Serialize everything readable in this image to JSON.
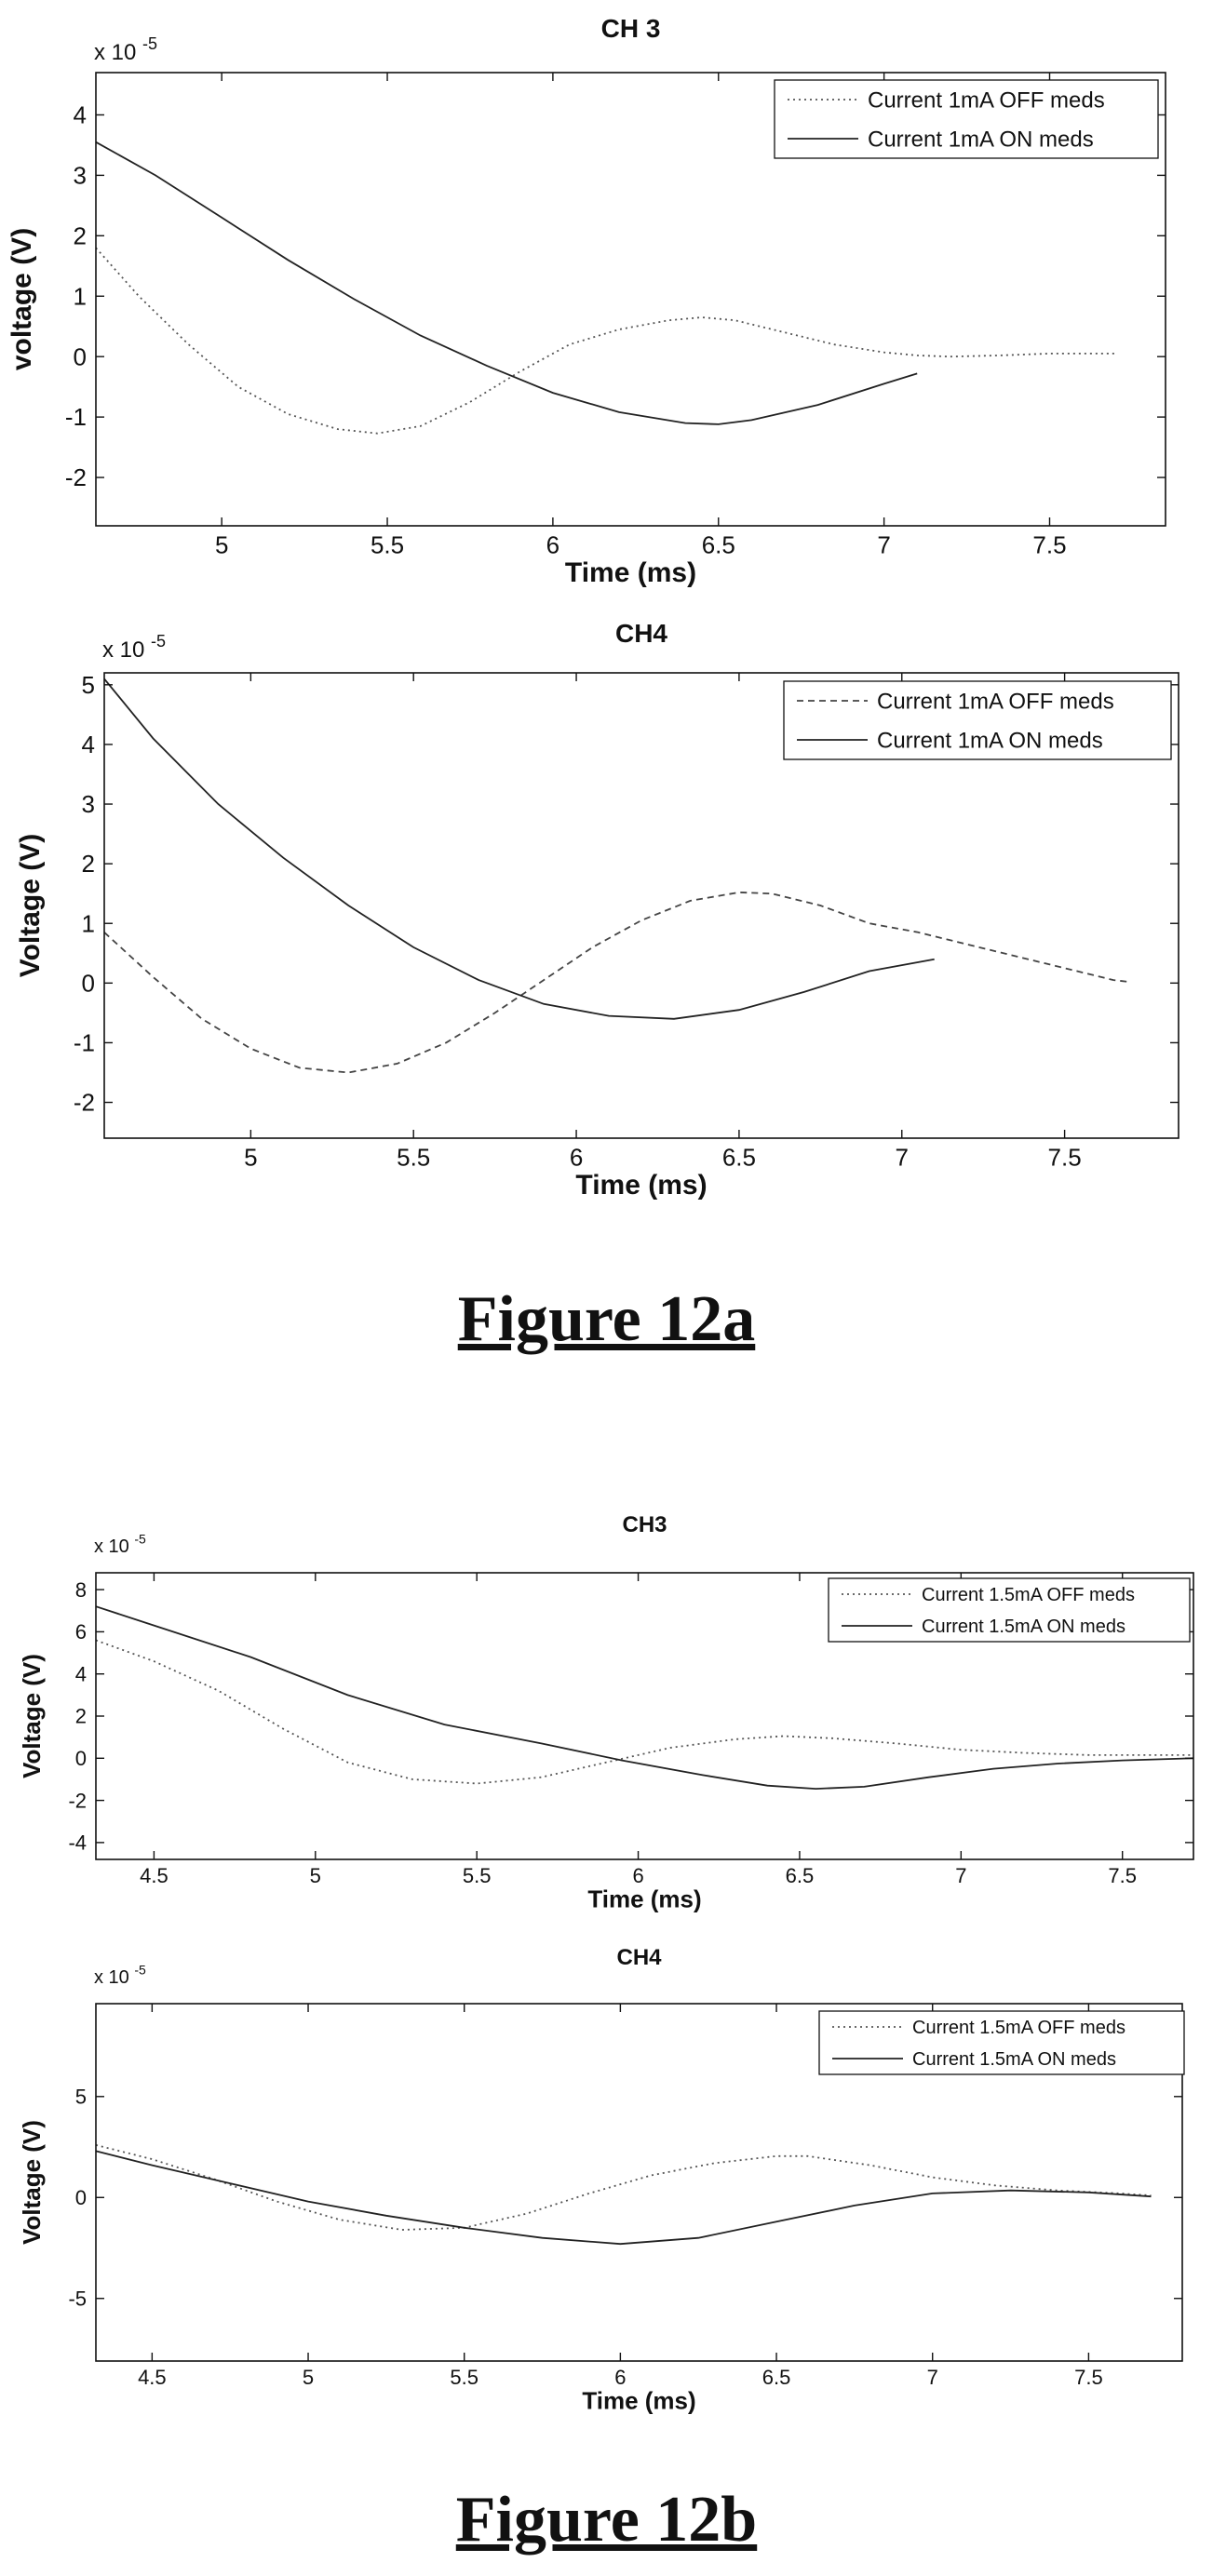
{
  "figures": [
    {
      "caption": "Figure 12a"
    },
    {
      "caption": "Figure 12b"
    }
  ],
  "chart_data": [
    {
      "type": "line",
      "title": "CH 3",
      "xlabel": "Time (ms)",
      "ylabel": "voltage (V)",
      "y_exponent_label": "x 10",
      "y_exponent_power": "-5",
      "xlim": [
        4.62,
        7.85
      ],
      "ylim": [
        -2.8,
        4.7
      ],
      "xticks": [
        5,
        5.5,
        6,
        6.5,
        7,
        7.5
      ],
      "xtick_labels": [
        "5",
        "5.5",
        "6",
        "6.5",
        "7",
        "7.5"
      ],
      "yticks": [
        -2,
        -1,
        0,
        1,
        2,
        3,
        4
      ],
      "ytick_labels": [
        "-2",
        "-1",
        "0",
        "1",
        "2",
        "3",
        "4"
      ],
      "grid": false,
      "legend": "top-right",
      "series": [
        {
          "name": "Current 1mA OFF meds",
          "style": "dotted",
          "color": "#555555",
          "x": [
            4.62,
            4.75,
            4.9,
            5.05,
            5.2,
            5.35,
            5.47,
            5.6,
            5.75,
            5.9,
            6.05,
            6.2,
            6.35,
            6.45,
            6.55,
            6.7,
            6.85,
            7.0,
            7.1,
            7.2,
            7.35,
            7.5,
            7.7
          ],
          "y": [
            1.8,
            1.0,
            0.2,
            -0.5,
            -0.95,
            -1.2,
            -1.27,
            -1.15,
            -0.75,
            -0.25,
            0.2,
            0.45,
            0.6,
            0.65,
            0.6,
            0.4,
            0.2,
            0.07,
            0.02,
            0.0,
            0.02,
            0.05,
            0.05
          ]
        },
        {
          "name": "Current 1mA ON meds",
          "style": "solid",
          "color": "#222222",
          "x": [
            4.62,
            4.8,
            5.0,
            5.2,
            5.4,
            5.6,
            5.8,
            6.0,
            6.2,
            6.4,
            6.5,
            6.6,
            6.8,
            7.0,
            7.1
          ],
          "y": [
            3.55,
            3.0,
            2.3,
            1.6,
            0.95,
            0.35,
            -0.15,
            -0.6,
            -0.92,
            -1.1,
            -1.12,
            -1.05,
            -0.8,
            -0.45,
            -0.28
          ]
        }
      ]
    },
    {
      "type": "line",
      "title": "CH4",
      "xlabel": "Time (ms)",
      "ylabel": "Voltage (V)",
      "y_exponent_label": "x 10",
      "y_exponent_power": "-5",
      "xlim": [
        4.55,
        7.85
      ],
      "ylim": [
        -2.6,
        5.2
      ],
      "xticks": [
        5,
        5.5,
        6,
        6.5,
        7,
        7.5
      ],
      "xtick_labels": [
        "5",
        "5.5",
        "6",
        "6.5",
        "7",
        "7.5"
      ],
      "yticks": [
        -2,
        -1,
        0,
        1,
        2,
        3,
        4,
        5
      ],
      "ytick_labels": [
        "-2",
        "-1",
        "0",
        "1",
        "2",
        "3",
        "4",
        "5"
      ],
      "grid": false,
      "legend": "top-right",
      "series": [
        {
          "name": "Current 1mA OFF meds",
          "style": "dashed",
          "color": "#444444",
          "x": [
            4.55,
            4.7,
            4.85,
            5.0,
            5.15,
            5.3,
            5.45,
            5.6,
            5.75,
            5.9,
            6.05,
            6.2,
            6.35,
            6.5,
            6.6,
            6.75,
            6.9,
            7.05,
            7.2,
            7.35,
            7.5,
            7.65,
            7.7
          ],
          "y": [
            0.85,
            0.1,
            -0.6,
            -1.1,
            -1.42,
            -1.5,
            -1.35,
            -1.0,
            -0.5,
            0.05,
            0.6,
            1.05,
            1.38,
            1.52,
            1.5,
            1.3,
            1.0,
            0.85,
            0.65,
            0.45,
            0.25,
            0.05,
            0.02
          ]
        },
        {
          "name": "Current 1mA ON meds",
          "style": "solid",
          "color": "#222222",
          "x": [
            4.55,
            4.7,
            4.9,
            5.1,
            5.3,
            5.5,
            5.7,
            5.9,
            6.1,
            6.3,
            6.5,
            6.7,
            6.9,
            7.1
          ],
          "y": [
            5.1,
            4.1,
            3.0,
            2.1,
            1.3,
            0.6,
            0.05,
            -0.35,
            -0.55,
            -0.6,
            -0.45,
            -0.15,
            0.2,
            0.4
          ]
        }
      ]
    },
    {
      "type": "line",
      "title": "CH3",
      "xlabel": "Time (ms)",
      "ylabel": "Voltage (V)",
      "y_exponent_label": "x 10",
      "y_exponent_power": "-5",
      "xlim": [
        4.32,
        7.72
      ],
      "ylim": [
        -4.8,
        8.8
      ],
      "xticks": [
        4.5,
        5,
        5.5,
        6,
        6.5,
        7,
        7.5
      ],
      "xtick_labels": [
        "4.5",
        "5",
        "5.5",
        "6",
        "6.5",
        "7",
        "7.5"
      ],
      "yticks": [
        -4,
        -2,
        0,
        2,
        4,
        6,
        8
      ],
      "ytick_labels": [
        "-4",
        "-2",
        "0",
        "2",
        "4",
        "6",
        "8"
      ],
      "grid": false,
      "legend": "top-right",
      "series": [
        {
          "name": "Current 1.5mA OFF meds",
          "style": "dotted",
          "color": "#555555",
          "x": [
            4.32,
            4.5,
            4.7,
            4.9,
            5.1,
            5.3,
            5.5,
            5.7,
            5.9,
            6.1,
            6.3,
            6.45,
            6.6,
            6.8,
            7.0,
            7.2,
            7.4,
            7.6,
            7.72
          ],
          "y": [
            5.6,
            4.6,
            3.2,
            1.4,
            -0.2,
            -1.0,
            -1.2,
            -0.9,
            -0.2,
            0.5,
            0.9,
            1.05,
            0.95,
            0.7,
            0.4,
            0.25,
            0.15,
            0.15,
            0.15
          ]
        },
        {
          "name": "Current 1.5mA ON meds",
          "style": "solid",
          "color": "#222222",
          "x": [
            4.32,
            4.5,
            4.8,
            5.1,
            5.4,
            5.7,
            5.95,
            6.2,
            6.4,
            6.55,
            6.7,
            6.9,
            7.1,
            7.3,
            7.5,
            7.72
          ],
          "y": [
            7.2,
            6.3,
            4.8,
            3.0,
            1.6,
            0.7,
            -0.1,
            -0.8,
            -1.3,
            -1.45,
            -1.35,
            -0.9,
            -0.5,
            -0.25,
            -0.1,
            0.0
          ]
        }
      ]
    },
    {
      "type": "line",
      "title": "CH4",
      "xlabel": "Time (ms)",
      "ylabel": "Voltage (V)",
      "y_exponent_label": "x 10",
      "y_exponent_power": "-5",
      "xlim": [
        4.32,
        7.8
      ],
      "ylim": [
        -8.1,
        9.6
      ],
      "xticks": [
        4.5,
        5,
        5.5,
        6,
        6.5,
        7,
        7.5
      ],
      "xtick_labels": [
        "4.5",
        "5",
        "5.5",
        "6",
        "6.5",
        "7",
        "7.5"
      ],
      "yticks": [
        -5,
        0,
        5
      ],
      "ytick_labels": [
        "-5",
        "0",
        "5"
      ],
      "grid": false,
      "legend": "top-right",
      "series": [
        {
          "name": "Current 1.5mA OFF meds",
          "style": "dotted",
          "color": "#555555",
          "x": [
            4.32,
            4.5,
            4.7,
            4.9,
            5.1,
            5.3,
            5.5,
            5.7,
            5.9,
            6.1,
            6.3,
            6.5,
            6.6,
            6.8,
            7.0,
            7.2,
            7.4,
            7.6,
            7.7
          ],
          "y": [
            2.6,
            1.9,
            0.9,
            -0.2,
            -1.1,
            -1.6,
            -1.5,
            -0.8,
            0.2,
            1.1,
            1.7,
            2.05,
            2.05,
            1.6,
            1.0,
            0.6,
            0.35,
            0.2,
            0.1
          ]
        },
        {
          "name": "Current 1.5mA ON meds",
          "style": "solid",
          "color": "#222222",
          "x": [
            4.32,
            4.5,
            4.75,
            5.0,
            5.25,
            5.5,
            5.75,
            6.0,
            6.25,
            6.5,
            6.75,
            7.0,
            7.25,
            7.5,
            7.7
          ],
          "y": [
            2.3,
            1.6,
            0.7,
            -0.2,
            -0.9,
            -1.5,
            -2.0,
            -2.3,
            -2.0,
            -1.2,
            -0.4,
            0.2,
            0.35,
            0.25,
            0.05
          ]
        }
      ]
    }
  ]
}
